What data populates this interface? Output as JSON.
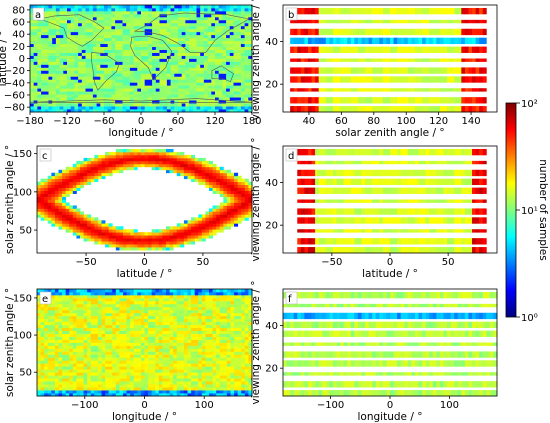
{
  "colorbar": {
    "label": "number of samples",
    "scale": "log",
    "range": [
      1,
      100
    ],
    "ticks": [
      {
        "value": 100,
        "label": "10²"
      },
      {
        "value": 10,
        "label": "10¹"
      },
      {
        "value": 1,
        "label": "10⁰"
      }
    ],
    "colormap": [
      "#00007f",
      "#0000ff",
      "#007fff",
      "#00ffff",
      "#7fff7f",
      "#ffff00",
      "#ff7f00",
      "#ff0000",
      "#7f0000"
    ]
  },
  "chart_data": [
    {
      "panel": "a",
      "type": "heatmap",
      "xlabel": "longitude / °",
      "ylabel": "latitude / °",
      "xlim": [
        -180,
        180
      ],
      "ylim": [
        -88,
        88
      ],
      "xticks": [
        -180,
        -120,
        -60,
        0,
        60,
        120,
        180
      ],
      "yticks": [
        -80,
        -60,
        -40,
        -20,
        0,
        20,
        40,
        60,
        80
      ],
      "overlay": "world coastlines",
      "typical_count": 10
    },
    {
      "panel": "b",
      "type": "heatmap",
      "xlabel": "solar zenith angle / °",
      "ylabel": "viewing zenith angle / °",
      "xlim": [
        24,
        156
      ],
      "ylim": [
        7,
        57
      ],
      "xticks": [
        40,
        60,
        80,
        100,
        120,
        140
      ],
      "yticks": [
        20,
        40
      ],
      "typical_count": 10
    },
    {
      "panel": "c",
      "type": "heatmap",
      "xlabel": "latitude / °",
      "ylabel": "solar zenith angle / °",
      "xlim": [
        -92,
        92
      ],
      "ylim": [
        20,
        160
      ],
      "xticks": [
        -50,
        0,
        50
      ],
      "yticks": [
        50,
        100,
        150
      ],
      "typical_count": 20
    },
    {
      "panel": "d",
      "type": "heatmap",
      "xlabel": "latitude / °",
      "ylabel": "viewing zenith angle / °",
      "xlim": [
        -92,
        92
      ],
      "ylim": [
        7,
        57
      ],
      "xticks": [
        -50,
        0,
        50
      ],
      "yticks": [
        20,
        40
      ],
      "typical_count": 10
    },
    {
      "panel": "e",
      "type": "heatmap",
      "xlabel": "longitude / °",
      "ylabel": "solar zenith angle / °",
      "xlim": [
        -180,
        180
      ],
      "ylim": [
        18,
        162
      ],
      "xticks": [
        -100,
        0,
        100
      ],
      "yticks": [
        50,
        100,
        150
      ],
      "typical_count": 10
    },
    {
      "panel": "f",
      "type": "heatmap",
      "xlabel": "longitude / °",
      "ylabel": "viewing zenith angle / °",
      "xlim": [
        -180,
        180
      ],
      "ylim": [
        7,
        57
      ],
      "xticks": [
        -100,
        0,
        100
      ],
      "yticks": [
        20,
        40
      ],
      "typical_count": 10
    }
  ]
}
